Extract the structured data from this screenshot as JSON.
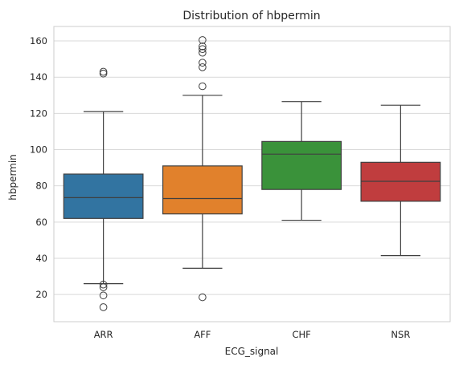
{
  "chart_data": {
    "type": "box",
    "title": "Distribution of hbpermin",
    "xlabel": "ECG_signal",
    "ylabel": "hbpermin",
    "categories": [
      "ARR",
      "AFF",
      "CHF",
      "NSR"
    ],
    "ylim": [
      5,
      168
    ],
    "yticks": [
      20,
      40,
      60,
      80,
      100,
      120,
      140,
      160
    ],
    "grid": true,
    "boxes": [
      {
        "category": "ARR",
        "color": "#3274a1",
        "whisker_low": 26,
        "q1": 62,
        "median": 73.5,
        "q3": 86.5,
        "whisker_high": 121,
        "outliers": [
          143,
          142,
          25.5,
          24,
          19.5,
          13
        ]
      },
      {
        "category": "AFF",
        "color": "#e1812c",
        "whisker_low": 34.5,
        "q1": 64.5,
        "median": 73,
        "q3": 91,
        "whisker_high": 130,
        "outliers": [
          160.5,
          157,
          155.5,
          153.5,
          148,
          145.5,
          135,
          18.5
        ]
      },
      {
        "category": "CHF",
        "color": "#3a923a",
        "whisker_low": 61,
        "q1": 78,
        "median": 97.5,
        "q3": 104.5,
        "whisker_high": 126.5,
        "outliers": []
      },
      {
        "category": "NSR",
        "color": "#c03d3e",
        "whisker_low": 41.5,
        "q1": 71.5,
        "median": 82.5,
        "q3": 93,
        "whisker_high": 124.5,
        "outliers": []
      }
    ]
  }
}
